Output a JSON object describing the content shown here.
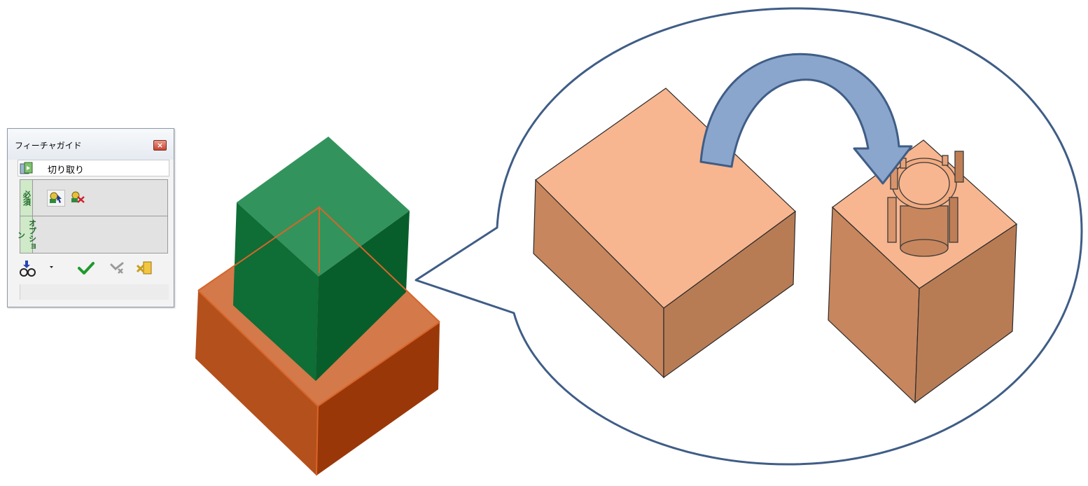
{
  "dialog": {
    "title": "フィーチャガイド",
    "feature_name": "切り取り",
    "tabs": {
      "required": "必須",
      "option": "オプション"
    },
    "icons": {
      "close": "close-icon",
      "feature": "cut-feature-icon",
      "select_target": "select-target-bodies-icon",
      "select_tool": "select-tool-bodies-icon",
      "preview": "preview-glasses-icon",
      "dropdown": "dropdown-arrow-icon",
      "ok": "ok-check-icon",
      "apply": "apply-icon",
      "cancel": "cancel-icon"
    }
  },
  "colors": {
    "green_body": "#1f7d46",
    "orange_body": "#c35a1c",
    "block_top": "#f7b690",
    "block_side_left": "#c7865d",
    "block_side_right": "#b87c55",
    "balloon_outline": "#3f5d86",
    "arrow_fill": "#8aa6cc"
  }
}
